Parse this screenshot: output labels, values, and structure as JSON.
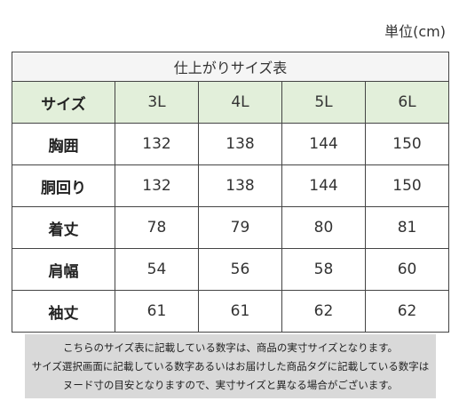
{
  "unit_label": "単位(cm)",
  "table": {
    "title": "仕上がりサイズ表",
    "header": {
      "label": "サイズ",
      "sizes": [
        "3L",
        "4L",
        "5L",
        "6L"
      ]
    },
    "rows": [
      {
        "label": "胸囲",
        "values": [
          "132",
          "138",
          "144",
          "150"
        ]
      },
      {
        "label": "胴回り",
        "values": [
          "132",
          "138",
          "144",
          "150"
        ]
      },
      {
        "label": "着丈",
        "values": [
          "78",
          "79",
          "80",
          "81"
        ]
      },
      {
        "label": "肩幅",
        "values": [
          "54",
          "56",
          "58",
          "60"
        ]
      },
      {
        "label": "袖丈",
        "values": [
          "61",
          "61",
          "62",
          "62"
        ]
      }
    ]
  },
  "note": {
    "lines": [
      "こちらのサイズ表に記載している数字は、商品の実寸サイズとなります。",
      "サイズ選択画面に記載している数字あるいはお届けした商品タグに記載している数字は",
      "ヌード寸の目安となりますので、実寸サイズと異なる場合がございます。"
    ]
  },
  "colors": {
    "header_bg": "#e2efda",
    "title_bg": "#f5f5f5",
    "note_bg": "#d9d9d9",
    "border": "#444444"
  }
}
